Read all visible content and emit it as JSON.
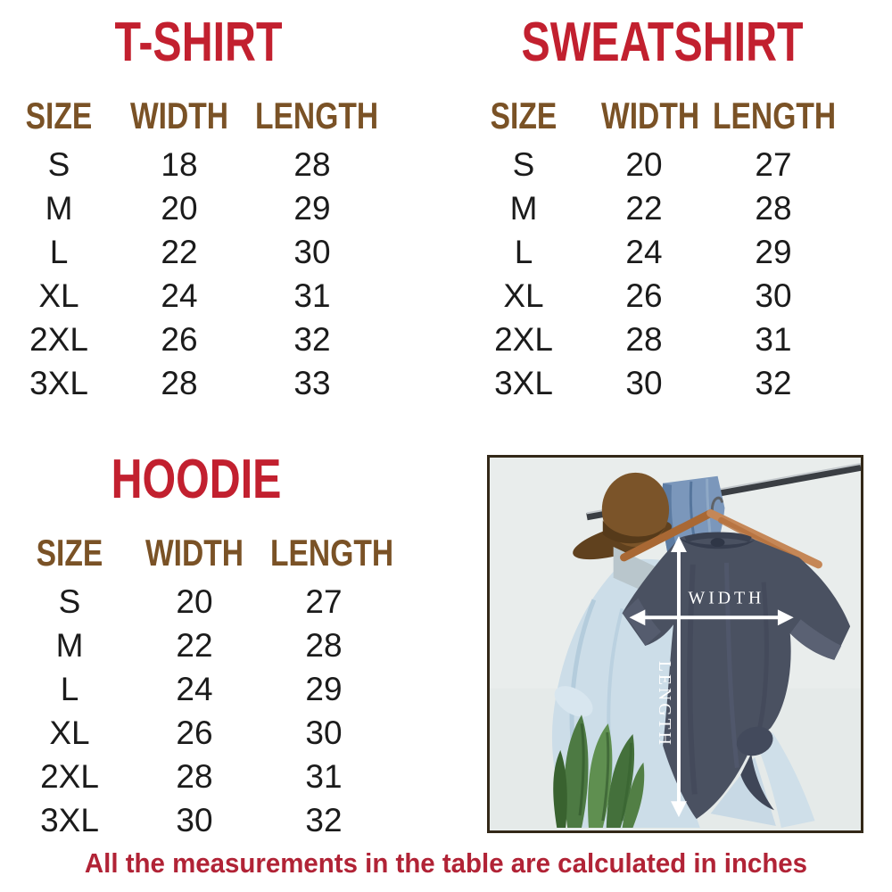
{
  "chart_data": [
    {
      "type": "table",
      "title": "T-SHIRT",
      "columns": [
        "SIZE",
        "WIDTH",
        "LENGTH"
      ],
      "rows": [
        [
          "S",
          "18",
          "28"
        ],
        [
          "M",
          "20",
          "29"
        ],
        [
          "L",
          "22",
          "30"
        ],
        [
          "XL",
          "24",
          "31"
        ],
        [
          "2XL",
          "26",
          "32"
        ],
        [
          "3XL",
          "28",
          "33"
        ]
      ]
    },
    {
      "type": "table",
      "title": "SWEATSHIRT",
      "columns": [
        "SIZE",
        "WIDTH",
        "LENGTH"
      ],
      "rows": [
        [
          "S",
          "20",
          "27"
        ],
        [
          "M",
          "22",
          "28"
        ],
        [
          "L",
          "24",
          "29"
        ],
        [
          "XL",
          "26",
          "30"
        ],
        [
          "2XL",
          "28",
          "31"
        ],
        [
          "3XL",
          "30",
          "32"
        ]
      ]
    },
    {
      "type": "table",
      "title": "HOODIE",
      "columns": [
        "SIZE",
        "WIDTH",
        "LENGTH"
      ],
      "rows": [
        [
          "S",
          "20",
          "27"
        ],
        [
          "M",
          "22",
          "28"
        ],
        [
          "L",
          "24",
          "29"
        ],
        [
          "XL",
          "26",
          "30"
        ],
        [
          "2XL",
          "28",
          "31"
        ],
        [
          "3XL",
          "30",
          "32"
        ]
      ]
    }
  ],
  "photo": {
    "width_label": "WIDTH",
    "length_label": "LENGTH"
  },
  "footer": {
    "note": "All the measurements in the table are calculated in inches"
  },
  "colors": {
    "title_red": "#c2202f",
    "header_brown": "#7a5226",
    "text_black": "#1b1b1b",
    "footer_red": "#b12336",
    "frame_brown": "#332818"
  }
}
